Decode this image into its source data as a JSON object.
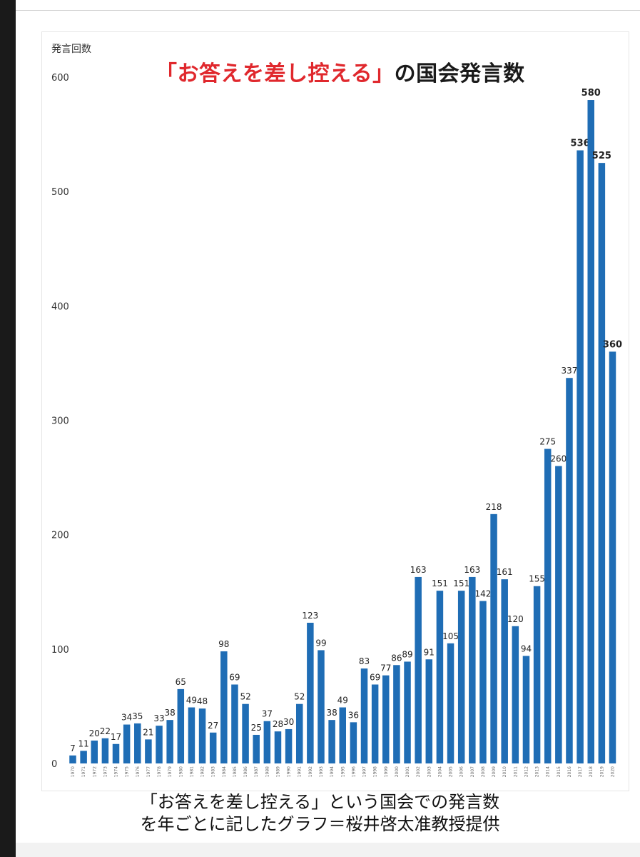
{
  "header": {
    "title_red": "「お答えを差し控える」",
    "title_black": "の国会発言数"
  },
  "caption": {
    "line1": "「お答えを差し控える」という国会での発言数",
    "line2": "を年ごとに記したグラフ＝桜井啓太准教授提供"
  },
  "colors": {
    "bar": "#1f6db5",
    "title_accent": "#e0282d"
  },
  "chart_data": {
    "type": "bar",
    "title": "「お答えを差し控える」の国会発言数",
    "ylabel": "発言回数",
    "xlabel": "",
    "ylim": [
      0,
      600
    ],
    "yticks": [
      0,
      100,
      200,
      300,
      400,
      500,
      600
    ],
    "grid": false,
    "categories": [
      "1970",
      "1971",
      "1972",
      "1973",
      "1974",
      "1975",
      "1976",
      "1977",
      "1978",
      "1979",
      "1980",
      "1981",
      "1982",
      "1983",
      "1984",
      "1985",
      "1986",
      "1987",
      "1988",
      "1989",
      "1990",
      "1991",
      "1992",
      "1993",
      "1994",
      "1995",
      "1996",
      "1997",
      "1998",
      "1999",
      "2000",
      "2001",
      "2002",
      "2003",
      "2004",
      "2005",
      "2006",
      "2007",
      "2008",
      "2009",
      "2010",
      "2011",
      "2012",
      "2013",
      "2014",
      "2015",
      "2016",
      "2017",
      "2018",
      "2019",
      "2020"
    ],
    "values": [
      7,
      11,
      20,
      22,
      17,
      34,
      35,
      21,
      33,
      38,
      65,
      49,
      48,
      27,
      98,
      69,
      52,
      25,
      37,
      28,
      30,
      52,
      123,
      99,
      38,
      49,
      36,
      83,
      69,
      77,
      86,
      89,
      163,
      91,
      151,
      105,
      151,
      163,
      142,
      218,
      161,
      120,
      94,
      155,
      275,
      260,
      337,
      536,
      580,
      525,
      360
    ]
  }
}
